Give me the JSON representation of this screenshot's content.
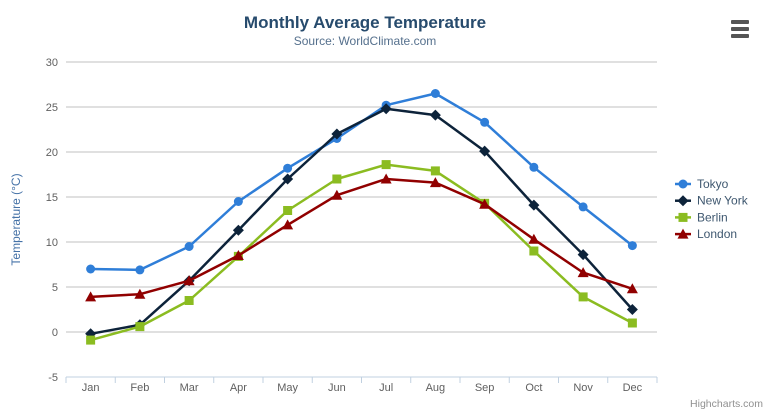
{
  "header": {
    "title": "Monthly Average Temperature",
    "subtitle": "Source: WorldClimate.com"
  },
  "export_menu": {
    "icon": "hamburger-icon"
  },
  "credits": {
    "label": "Highcharts.com"
  },
  "colors": {
    "title": "#274b6d",
    "subtitle": "#55708d",
    "axis_label": "#606060",
    "axis_line": "#c0d0e0",
    "gridline": "#c0c0c0",
    "y_axis_title": "#4572a7",
    "legend_text": "#3e576f",
    "credits_text": "#909090"
  },
  "chart_data": {
    "type": "line",
    "title": "Monthly Average Temperature",
    "subtitle": "Source: WorldClimate.com",
    "xlabel": "",
    "ylabel": "Temperature (°C)",
    "categories": [
      "Jan",
      "Feb",
      "Mar",
      "Apr",
      "May",
      "Jun",
      "Jul",
      "Aug",
      "Sep",
      "Oct",
      "Nov",
      "Dec"
    ],
    "series": [
      {
        "name": "Tokyo",
        "color": "#2f7ed8",
        "marker": "circle",
        "values": [
          7.0,
          6.9,
          9.5,
          14.5,
          18.2,
          21.5,
          25.2,
          26.5,
          23.3,
          18.3,
          13.9,
          9.6
        ]
      },
      {
        "name": "New York",
        "color": "#0d233a",
        "marker": "diamond",
        "values": [
          -0.2,
          0.8,
          5.7,
          11.3,
          17.0,
          22.0,
          24.8,
          24.1,
          20.1,
          14.1,
          8.6,
          2.5
        ]
      },
      {
        "name": "Berlin",
        "color": "#8bbc21",
        "marker": "square",
        "values": [
          -0.9,
          0.6,
          3.5,
          8.4,
          13.5,
          17.0,
          18.6,
          17.9,
          14.3,
          9.0,
          3.9,
          1.0
        ]
      },
      {
        "name": "London",
        "color": "#910000",
        "marker": "triangle",
        "values": [
          3.9,
          4.2,
          5.7,
          8.5,
          11.9,
          15.2,
          17.0,
          16.6,
          14.2,
          10.3,
          6.6,
          4.8
        ]
      }
    ],
    "ylim": [
      -5,
      30
    ],
    "yticks": [
      -5,
      0,
      5,
      10,
      15,
      20,
      25,
      30
    ],
    "grid": true,
    "legend_position": "right"
  }
}
